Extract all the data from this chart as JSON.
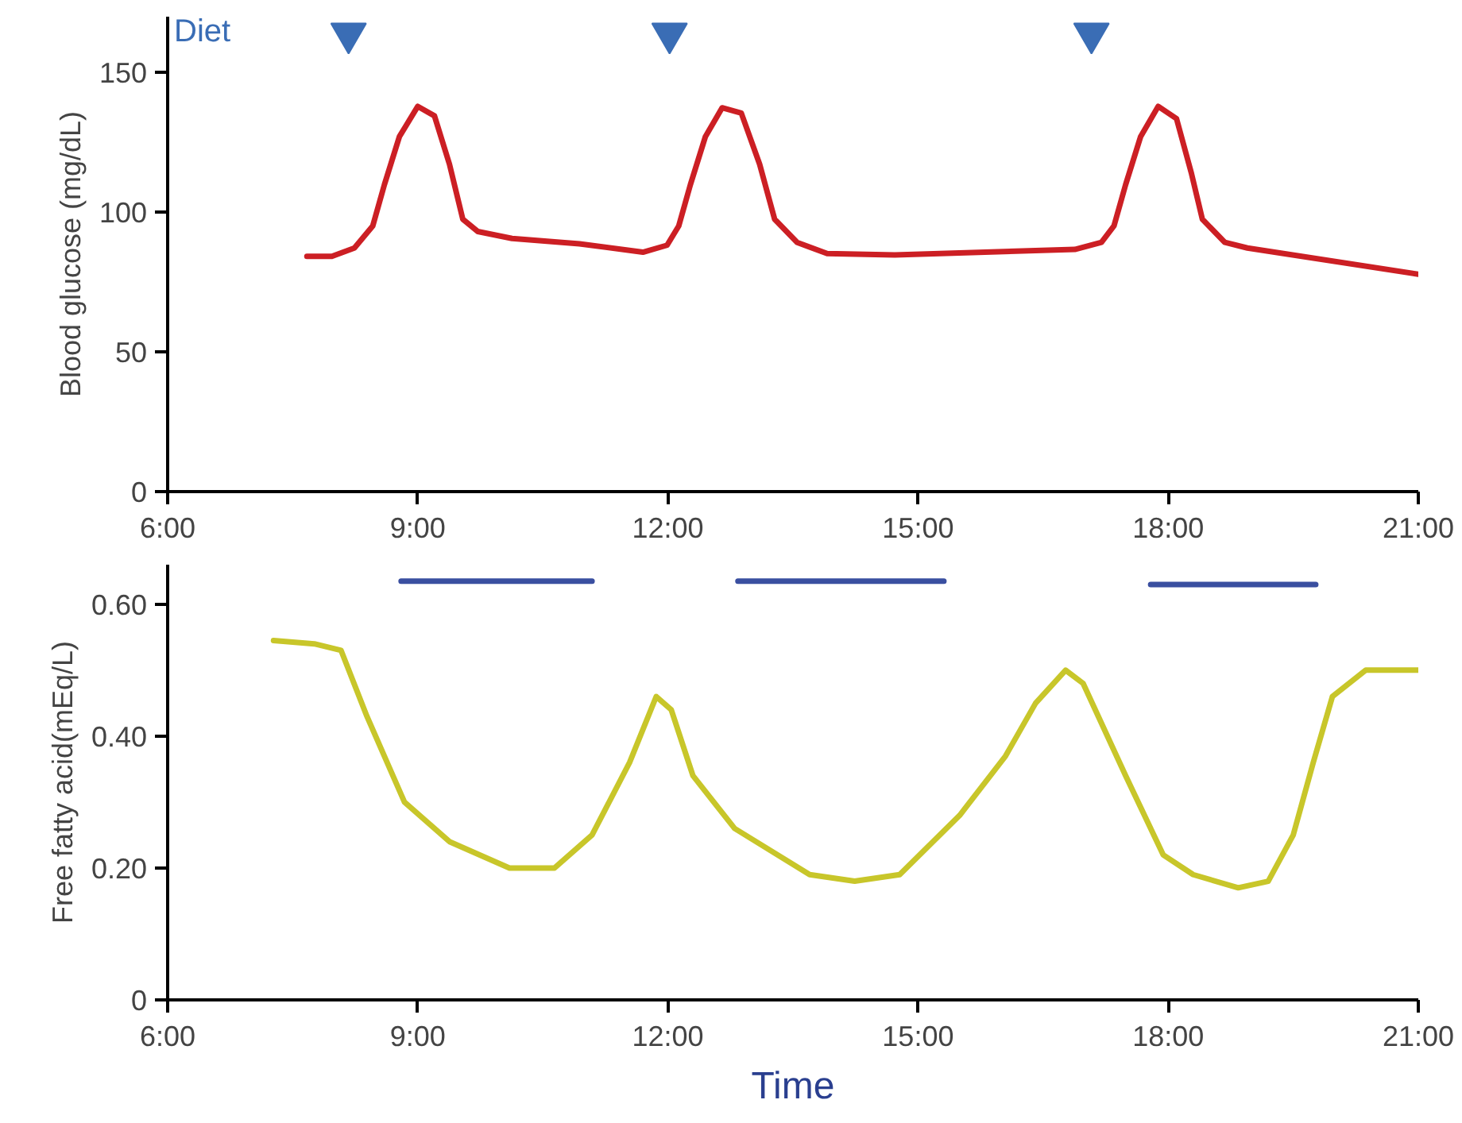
{
  "chart_data": [
    {
      "type": "line",
      "ylabel": "Blood glucose (mg/dL)",
      "xlim": [
        6,
        21
      ],
      "ylim": [
        0,
        170
      ],
      "xticks": [
        {
          "value": 6,
          "label": "6:00"
        },
        {
          "value": 9,
          "label": "9:00"
        },
        {
          "value": 12,
          "label": "12:00"
        },
        {
          "value": 15,
          "label": "15:00"
        },
        {
          "value": 18,
          "label": "18:00"
        },
        {
          "value": 21,
          "label": "21:00"
        }
      ],
      "yticks": [
        0,
        50,
        100,
        150
      ],
      "grid": false,
      "series": [
        {
          "type": "scatter",
          "name": "Diet",
          "color": "#3a6db5",
          "marker": "triangle",
          "x": [
            8.17,
            12.02,
            17.08
          ],
          "values": [
            164,
            164,
            164
          ]
        },
        {
          "color": "#cc1f24",
          "x": [
            7.67,
            7.97,
            8.24,
            8.46,
            8.6,
            8.78,
            9.0,
            9.2,
            9.38,
            9.54,
            9.72,
            10.13,
            10.94,
            11.7,
            11.99,
            12.13,
            12.27,
            12.45,
            12.65,
            12.88,
            13.1,
            13.28,
            13.55,
            13.91,
            14.72,
            16.88,
            17.2,
            17.35,
            17.49,
            17.67,
            17.88,
            18.1,
            18.28,
            18.41,
            18.68,
            18.95,
            21.0
          ],
          "values": [
            84.2,
            84.2,
            87.2,
            95.1,
            109.9,
            127.1,
            137.9,
            134.5,
            117.2,
            97.5,
            93.1,
            90.6,
            88.7,
            85.7,
            88.2,
            95.1,
            109.9,
            127.1,
            137.4,
            135.5,
            117.2,
            97.5,
            89.2,
            85.2,
            84.7,
            86.7,
            89.2,
            95.1,
            109.9,
            127.1,
            137.9,
            133.5,
            113.8,
            97.5,
            89.2,
            87.2,
            77.8
          ]
        }
      ]
    },
    {
      "type": "line",
      "ylabel": "Free fatty acid(mEq/L)",
      "xlabel": "Time",
      "xlim": [
        6,
        21
      ],
      "ylim": [
        0,
        0.66
      ],
      "xticks": [
        {
          "value": 6,
          "label": "6:00"
        },
        {
          "value": 9,
          "label": "9:00"
        },
        {
          "value": 12,
          "label": "12:00"
        },
        {
          "value": 15,
          "label": "15:00"
        },
        {
          "value": 18,
          "label": "18:00"
        },
        {
          "value": 21,
          "label": "21:00"
        }
      ],
      "yticks": [
        0,
        {
          "value": 0.2,
          "label": "0.20"
        },
        {
          "value": 0.4,
          "label": "0.40"
        },
        {
          "value": 0.6,
          "label": "0.60"
        }
      ],
      "grid": false,
      "series": [
        {
          "color": "#3a4fa0",
          "x": [
            8.8,
            11.09,
            11.1,
            12.84,
            15.31,
            15.32,
            17.79,
            19.77
          ],
          "values": [
            0.635,
            0.635,
            null,
            0.635,
            0.635,
            null,
            0.63,
            0.63
          ]
        },
        {
          "color": "#c8c62a",
          "x": [
            7.27,
            7.76,
            8.08,
            8.39,
            8.84,
            9.38,
            10.1,
            10.64,
            11.09,
            11.54,
            11.86,
            12.04,
            12.3,
            12.8,
            13.7,
            14.24,
            14.78,
            15.5,
            16.05,
            16.41,
            16.77,
            16.98,
            17.49,
            17.94,
            18.3,
            18.84,
            19.2,
            19.5,
            19.74,
            19.97,
            20.37,
            21.0
          ],
          "values": [
            0.545,
            0.54,
            0.53,
            0.43,
            0.3,
            0.24,
            0.2,
            0.2,
            0.25,
            0.36,
            0.46,
            0.44,
            0.34,
            0.26,
            0.19,
            0.18,
            0.19,
            0.28,
            0.37,
            0.45,
            0.5,
            0.48,
            0.34,
            0.22,
            0.19,
            0.17,
            0.18,
            0.25,
            0.36,
            0.46,
            0.5,
            0.5
          ]
        }
      ]
    }
  ]
}
